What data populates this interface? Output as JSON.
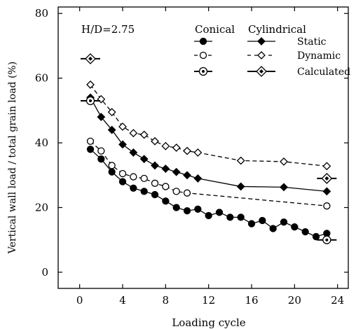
{
  "chart_data": {
    "type": "line",
    "xlabel": "Loading  cycle",
    "ylabel": "Vertical wall load / total grain load  (%)",
    "xlim": [
      -2,
      25
    ],
    "ylim": [
      -5,
      82
    ],
    "xticks": [
      0,
      4,
      8,
      12,
      16,
      20,
      24
    ],
    "yticks": [
      0,
      20,
      40,
      60,
      80
    ],
    "annotation": "H/D=2.75",
    "legend": {
      "col1": "Conical",
      "col2": "Cylindrical",
      "rows": [
        "Static",
        "Dynamic",
        "Calculated"
      ]
    },
    "series": [
      {
        "name": "Static",
        "group": "Cylindrical",
        "style": "solid",
        "marker": "diamond-filled",
        "x": [
          1,
          2,
          3,
          4,
          5,
          6,
          7,
          8,
          9,
          10,
          11,
          15,
          19,
          23
        ],
        "y": [
          54,
          48,
          44,
          39.5,
          37,
          35,
          33,
          32,
          31,
          30,
          29,
          26.5,
          26.3,
          25
        ]
      },
      {
        "name": "Dynamic",
        "group": "Cylindrical",
        "style": "dashed",
        "marker": "diamond-open",
        "x": [
          1,
          2,
          3,
          4,
          5,
          6,
          7,
          8,
          9,
          10,
          11,
          15,
          19,
          23
        ],
        "y": [
          58,
          53.5,
          49.5,
          45,
          43,
          42.5,
          40.5,
          39,
          38.5,
          37.5,
          37,
          34.5,
          34.2,
          32.8
        ]
      },
      {
        "name": "Calculated",
        "group": "Cylindrical",
        "style": "bar",
        "marker": "diamond-dot",
        "x": [
          1,
          23
        ],
        "y": [
          66,
          29
        ]
      },
      {
        "name": "Static",
        "group": "Conical",
        "style": "solid",
        "marker": "circle-filled",
        "x": [
          1,
          2,
          3,
          4,
          5,
          6,
          7,
          8,
          9,
          10,
          11,
          12,
          13,
          14,
          15,
          16,
          17,
          18,
          19,
          20,
          21,
          22,
          23
        ],
        "y": [
          38,
          35,
          31,
          28,
          26,
          25,
          24,
          22,
          20,
          19,
          19.5,
          17.5,
          18.5,
          17,
          17,
          15,
          16,
          13.5,
          15.5,
          14,
          12.5,
          11,
          12
        ]
      },
      {
        "name": "Dynamic",
        "group": "Conical",
        "style": "dashed",
        "marker": "circle-open",
        "x": [
          1,
          2,
          3,
          4,
          5,
          6,
          7,
          8,
          9,
          10,
          23
        ],
        "y": [
          40.5,
          37.5,
          33,
          30.5,
          29.5,
          29,
          27.5,
          26.5,
          25,
          24.5,
          20.5
        ]
      },
      {
        "name": "Calculated",
        "group": "Conical",
        "style": "bar",
        "marker": "circle-dot",
        "x": [
          1,
          23
        ],
        "y": [
          53,
          10
        ]
      }
    ]
  }
}
